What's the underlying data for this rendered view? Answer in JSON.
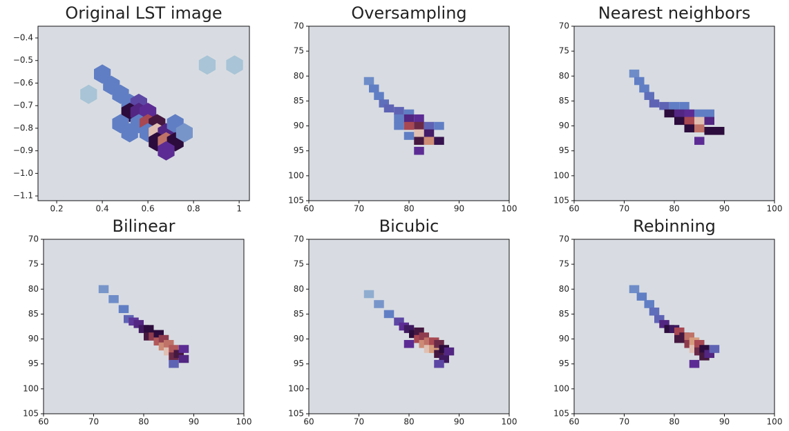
{
  "chart_data": [
    {
      "type": "hexbin",
      "title": "Original LST image",
      "colormap": "twilight",
      "xlim": [
        0.118,
        1.045
      ],
      "ylim": [
        -1.121,
        -0.348
      ],
      "xticks": [
        0.2,
        0.4,
        0.6,
        0.8,
        1.0
      ],
      "yticks": [
        {
          "value": -0.4,
          "label": "−0.4"
        },
        {
          "value": -0.5,
          "label": "−0.5"
        },
        {
          "value": -0.6,
          "label": "−0.6"
        },
        {
          "value": -0.7,
          "label": "−0.7"
        },
        {
          "value": -0.8,
          "label": "−0.8"
        },
        {
          "value": -0.9,
          "label": "−0.9"
        },
        {
          "value": -1.0,
          "label": "−1.0"
        },
        {
          "value": -1.1,
          "label": "−1.1"
        }
      ],
      "x": [
        0.4,
        0.44,
        0.48,
        0.52,
        0.56,
        0.52,
        0.56,
        0.6,
        0.48,
        0.56,
        0.6,
        0.64,
        0.52,
        0.6,
        0.64,
        0.68,
        0.72,
        0.64,
        0.68,
        0.72,
        0.68,
        0.76,
        0.34,
        0.86,
        0.98
      ],
      "y": [
        -0.56,
        -0.61,
        -0.65,
        -0.69,
        -0.69,
        -0.73,
        -0.73,
        -0.73,
        -0.78,
        -0.78,
        -0.78,
        -0.78,
        -0.82,
        -0.82,
        -0.82,
        -0.82,
        -0.78,
        -0.86,
        -0.86,
        -0.86,
        -0.9,
        -0.82,
        -0.65,
        -0.52,
        -0.52
      ],
      "values": [
        0.45,
        0.45,
        0.45,
        0.45,
        0.55,
        0.7,
        0.62,
        0.6,
        0.45,
        0.45,
        0.8,
        0.72,
        0.45,
        0.45,
        0.95,
        0.62,
        0.45,
        0.7,
        0.85,
        0.7,
        0.6,
        0.4,
        0.3,
        0.3,
        0.3
      ]
    },
    {
      "type": "heatmap",
      "title": "Oversampling",
      "colormap": "twilight",
      "xlim": [
        60,
        100
      ],
      "ylim": [
        105,
        70
      ],
      "xticks": [
        60,
        70,
        80,
        90,
        100
      ],
      "yticks": [
        70,
        75,
        80,
        85,
        90,
        95,
        100,
        105
      ],
      "x": [
        72,
        73,
        74,
        75,
        76,
        78,
        80,
        78,
        80,
        82,
        78,
        80,
        82,
        84,
        86,
        82,
        84,
        80,
        82,
        84,
        86,
        82
      ],
      "y": [
        81,
        82.5,
        84,
        85.5,
        86.5,
        87,
        87.5,
        88.5,
        88.5,
        88.5,
        90,
        90,
        90,
        90,
        90,
        91.5,
        91.5,
        92,
        93,
        93,
        93,
        95
      ],
      "values": [
        0.42,
        0.45,
        0.45,
        0.48,
        0.5,
        0.5,
        0.45,
        0.45,
        0.62,
        0.6,
        0.45,
        0.8,
        0.75,
        0.5,
        0.45,
        0.95,
        0.65,
        0.45,
        0.72,
        0.88,
        0.68,
        0.6
      ]
    },
    {
      "type": "heatmap",
      "title": "Nearest neighbors",
      "colormap": "twilight",
      "xlim": [
        60,
        100
      ],
      "ylim": [
        105,
        70
      ],
      "xticks": [
        60,
        70,
        80,
        90,
        100
      ],
      "yticks": [
        70,
        75,
        80,
        85,
        90,
        95,
        100,
        105
      ],
      "x": [
        72,
        73,
        74,
        75,
        76,
        78,
        80,
        82,
        79,
        81,
        83,
        85,
        87,
        81,
        83,
        85,
        87,
        83,
        85,
        87,
        89,
        85
      ],
      "y": [
        79.5,
        81,
        82.5,
        84,
        85.5,
        86,
        86,
        86,
        87.5,
        87.5,
        87.5,
        87.5,
        87.5,
        89,
        89,
        89,
        89,
        90.5,
        90.5,
        91,
        91,
        93
      ],
      "values": [
        0.42,
        0.45,
        0.45,
        0.48,
        0.5,
        0.5,
        0.45,
        0.45,
        0.7,
        0.62,
        0.6,
        0.45,
        0.45,
        0.7,
        0.8,
        0.95,
        0.62,
        0.7,
        0.85,
        0.7,
        0.7,
        0.6
      ]
    },
    {
      "type": "heatmap",
      "title": "Bilinear",
      "colormap": "twilight",
      "xlim": [
        60,
        100
      ],
      "ylim": [
        105,
        70
      ],
      "xticks": [
        60,
        70,
        80,
        90,
        100
      ],
      "yticks": [
        70,
        75,
        80,
        85,
        90,
        95,
        100,
        105
      ],
      "x": [
        72,
        74,
        76,
        77,
        78,
        79,
        80,
        81,
        81,
        82,
        83,
        83,
        84,
        84,
        85,
        85,
        86,
        86,
        87,
        88,
        88,
        86
      ],
      "y": [
        80,
        82,
        84,
        86,
        86.5,
        87,
        88,
        88,
        89.5,
        89.5,
        89,
        90.5,
        90,
        91.5,
        91,
        92.5,
        92,
        93.5,
        93,
        92,
        94,
        95
      ],
      "values": [
        0.4,
        0.42,
        0.45,
        0.5,
        0.58,
        0.62,
        0.66,
        0.7,
        0.72,
        0.78,
        0.7,
        0.82,
        0.78,
        0.88,
        0.85,
        0.95,
        0.82,
        0.75,
        0.72,
        0.6,
        0.62,
        0.5
      ]
    },
    {
      "type": "heatmap",
      "title": "Bicubic",
      "colormap": "twilight",
      "xlim": [
        60,
        100
      ],
      "ylim": [
        105,
        70
      ],
      "xticks": [
        60,
        70,
        80,
        90,
        100
      ],
      "yticks": [
        70,
        75,
        80,
        85,
        90,
        95,
        100,
        105
      ],
      "x": [
        72,
        74,
        76,
        78,
        79,
        80,
        81,
        82,
        82,
        83,
        83,
        84,
        84,
        85,
        85,
        86,
        86,
        87,
        87,
        88,
        80,
        86
      ],
      "y": [
        81,
        83,
        85,
        86.5,
        87.5,
        88,
        89,
        88.5,
        90,
        89.5,
        91,
        90.5,
        92,
        90.5,
        92,
        91,
        93,
        92,
        94,
        92.5,
        91,
        95
      ],
      "values": [
        0.35,
        0.4,
        0.45,
        0.55,
        0.6,
        0.66,
        0.7,
        0.72,
        0.8,
        0.78,
        0.88,
        0.85,
        0.95,
        0.8,
        0.9,
        0.75,
        0.72,
        0.7,
        0.66,
        0.62,
        0.6,
        0.55
      ]
    },
    {
      "type": "heatmap",
      "title": "Rebinning",
      "colormap": "twilight",
      "xlim": [
        60,
        100
      ],
      "ylim": [
        105,
        70
      ],
      "xticks": [
        60,
        70,
        80,
        90,
        100
      ],
      "yticks": [
        70,
        75,
        80,
        85,
        90,
        95,
        100,
        105
      ],
      "x": [
        72,
        73.5,
        75,
        76,
        77,
        78,
        79,
        80,
        81,
        81,
        82,
        83,
        83,
        84,
        84,
        85,
        85,
        86,
        86,
        87,
        88,
        84
      ],
      "y": [
        80,
        81.5,
        83,
        84.5,
        86,
        87,
        88,
        88,
        88.5,
        90,
        89.5,
        89.5,
        91,
        90.5,
        92,
        91,
        92.5,
        92,
        93.5,
        93,
        92,
        95
      ],
      "values": [
        0.42,
        0.45,
        0.45,
        0.48,
        0.5,
        0.62,
        0.7,
        0.66,
        0.8,
        0.72,
        0.72,
        0.85,
        0.78,
        0.9,
        0.95,
        0.8,
        0.75,
        0.7,
        0.72,
        0.62,
        0.5,
        0.6
      ]
    }
  ]
}
